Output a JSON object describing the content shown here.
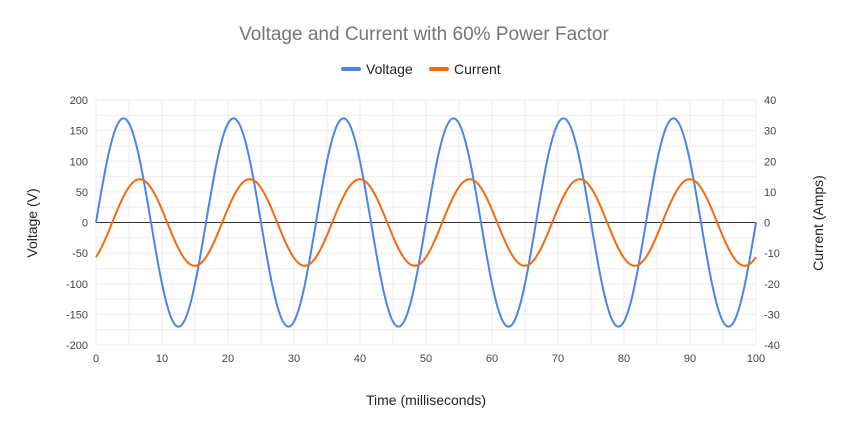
{
  "chart_data": {
    "type": "line",
    "title": "Voltage and Current with 60% Power Factor",
    "xlabel": "Time (milliseconds)",
    "ylabel": "Voltage (V)",
    "y2label": "Current (Amps)",
    "xlim": [
      0,
      100
    ],
    "ylim": [
      -200,
      200
    ],
    "y2lim": [
      -40,
      40
    ],
    "xticks": [
      "0",
      "10",
      "20",
      "30",
      "40",
      "50",
      "60",
      "70",
      "80",
      "90",
      "100"
    ],
    "yticks": [
      "200",
      "150",
      "100",
      "50",
      "0",
      "-50",
      "-100",
      "-150",
      "-200"
    ],
    "y2ticks": [
      "40",
      "30",
      "20",
      "10",
      "0",
      "-10",
      "-20",
      "-30",
      "-40"
    ],
    "grid": true,
    "legend_position": "top",
    "series": [
      {
        "name": "Voltage",
        "axis": "left",
        "color": "#4a86e8",
        "function": "sine",
        "amplitude": 170,
        "frequency_hz": 60,
        "phase_deg": 0
      },
      {
        "name": "Current",
        "axis": "right",
        "color": "#f26b0f",
        "function": "sine",
        "amplitude": 14.14,
        "frequency_hz": 60,
        "phase_deg": -53.13
      }
    ]
  }
}
